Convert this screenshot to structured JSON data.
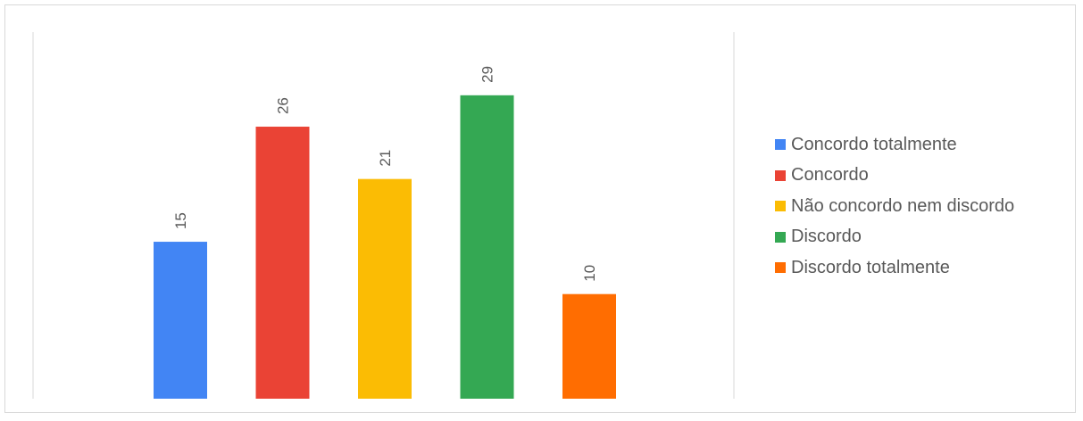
{
  "chart_data": {
    "type": "bar",
    "title": "",
    "xlabel": "",
    "ylabel": "",
    "categories": [
      "Concordo totalmente",
      "Concordo",
      "Não concordo nem discordo",
      "Discordo",
      "Discordo totalmente"
    ],
    "values": [
      15,
      26,
      21,
      29,
      10
    ],
    "colors": [
      "#4285f4",
      "#ea4335",
      "#fbbc04",
      "#34a853",
      "#ff6d01"
    ],
    "ylim": [
      0,
      30
    ],
    "grid": false,
    "legend_position": "right",
    "data_labels": "rotated"
  }
}
